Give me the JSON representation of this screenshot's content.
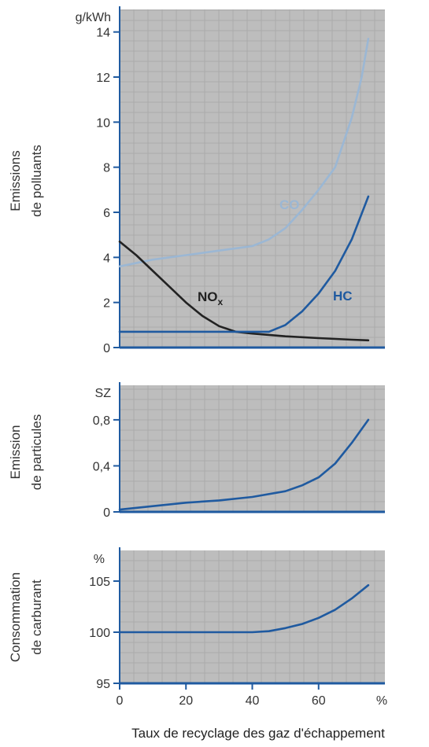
{
  "x_axis": {
    "label": "Taux de recyclage des gaz d'échappement",
    "unit": "%",
    "ticks": [
      "0",
      "20",
      "40",
      "60"
    ],
    "tick_values": [
      0,
      20,
      40,
      60
    ],
    "range": [
      0,
      80
    ]
  },
  "colors": {
    "plot_background": "#bdbdbd",
    "grid": "#aaaaaa",
    "axis": "#1f5aa0",
    "hc": "#1f5aa0",
    "co": "#9bb7d4",
    "nox": "#222222",
    "particles": "#1f5aa0",
    "consumption": "#1f5aa0"
  },
  "chart_data": [
    {
      "type": "line",
      "ylabel_line1": "Emissions",
      "ylabel_line2": "de polluants",
      "unit": "g/kWh",
      "ylim": [
        0,
        15
      ],
      "yticks": [
        0,
        2,
        4,
        6,
        8,
        10,
        12,
        14
      ],
      "ytick_labels": [
        "0",
        "2",
        "4",
        "6",
        "8",
        "10",
        "12",
        "14"
      ],
      "grid": true,
      "series": [
        {
          "key": "co",
          "name": "CO",
          "points": [
            [
              0,
              3.6
            ],
            [
              10,
              3.9
            ],
            [
              20,
              4.1
            ],
            [
              30,
              4.3
            ],
            [
              40,
              4.5
            ],
            [
              45,
              4.8
            ],
            [
              50,
              5.3
            ],
            [
              55,
              6.1
            ],
            [
              60,
              7.0
            ],
            [
              65,
              8.0
            ],
            [
              70,
              10.2
            ],
            [
              73,
              12.0
            ],
            [
              75,
              13.7
            ]
          ]
        },
        {
          "key": "nox",
          "name": "NOx",
          "points": [
            [
              0,
              4.7
            ],
            [
              5,
              4.1
            ],
            [
              10,
              3.4
            ],
            [
              15,
              2.7
            ],
            [
              20,
              2.0
            ],
            [
              25,
              1.4
            ],
            [
              30,
              0.95
            ],
            [
              35,
              0.7
            ],
            [
              40,
              0.62
            ],
            [
              50,
              0.5
            ],
            [
              60,
              0.42
            ],
            [
              70,
              0.35
            ],
            [
              75,
              0.32
            ]
          ]
        },
        {
          "key": "hc",
          "name": "HC",
          "points": [
            [
              0,
              0.7
            ],
            [
              20,
              0.7
            ],
            [
              40,
              0.7
            ],
            [
              45,
              0.7
            ],
            [
              50,
              1.0
            ],
            [
              55,
              1.6
            ],
            [
              60,
              2.4
            ],
            [
              65,
              3.4
            ],
            [
              70,
              4.8
            ],
            [
              75,
              6.7
            ]
          ]
        }
      ]
    },
    {
      "type": "line",
      "ylabel_line1": "Emission",
      "ylabel_line2": "de particules",
      "unit": "SZ",
      "ylim": [
        0,
        1.1
      ],
      "yticks": [
        0,
        0.4,
        0.8
      ],
      "ytick_labels": [
        "0",
        "0,4",
        "0,8"
      ],
      "grid": true,
      "series": [
        {
          "key": "particles",
          "points": [
            [
              0,
              0.02
            ],
            [
              10,
              0.05
            ],
            [
              20,
              0.08
            ],
            [
              30,
              0.1
            ],
            [
              40,
              0.13
            ],
            [
              50,
              0.18
            ],
            [
              55,
              0.23
            ],
            [
              60,
              0.3
            ],
            [
              65,
              0.42
            ],
            [
              70,
              0.6
            ],
            [
              75,
              0.8
            ]
          ]
        }
      ]
    },
    {
      "type": "line",
      "ylabel_line1": "Consommation",
      "ylabel_line2": "de carburant",
      "unit": "%",
      "ylim": [
        95,
        108
      ],
      "yticks": [
        95,
        100,
        105
      ],
      "ytick_labels": [
        "95",
        "100",
        "105"
      ],
      "grid": true,
      "series": [
        {
          "key": "consumption",
          "points": [
            [
              0,
              100.0
            ],
            [
              20,
              100.0
            ],
            [
              40,
              100.0
            ],
            [
              45,
              100.1
            ],
            [
              50,
              100.4
            ],
            [
              55,
              100.8
            ],
            [
              60,
              101.4
            ],
            [
              65,
              102.2
            ],
            [
              70,
              103.3
            ],
            [
              75,
              104.6
            ]
          ]
        }
      ]
    }
  ]
}
